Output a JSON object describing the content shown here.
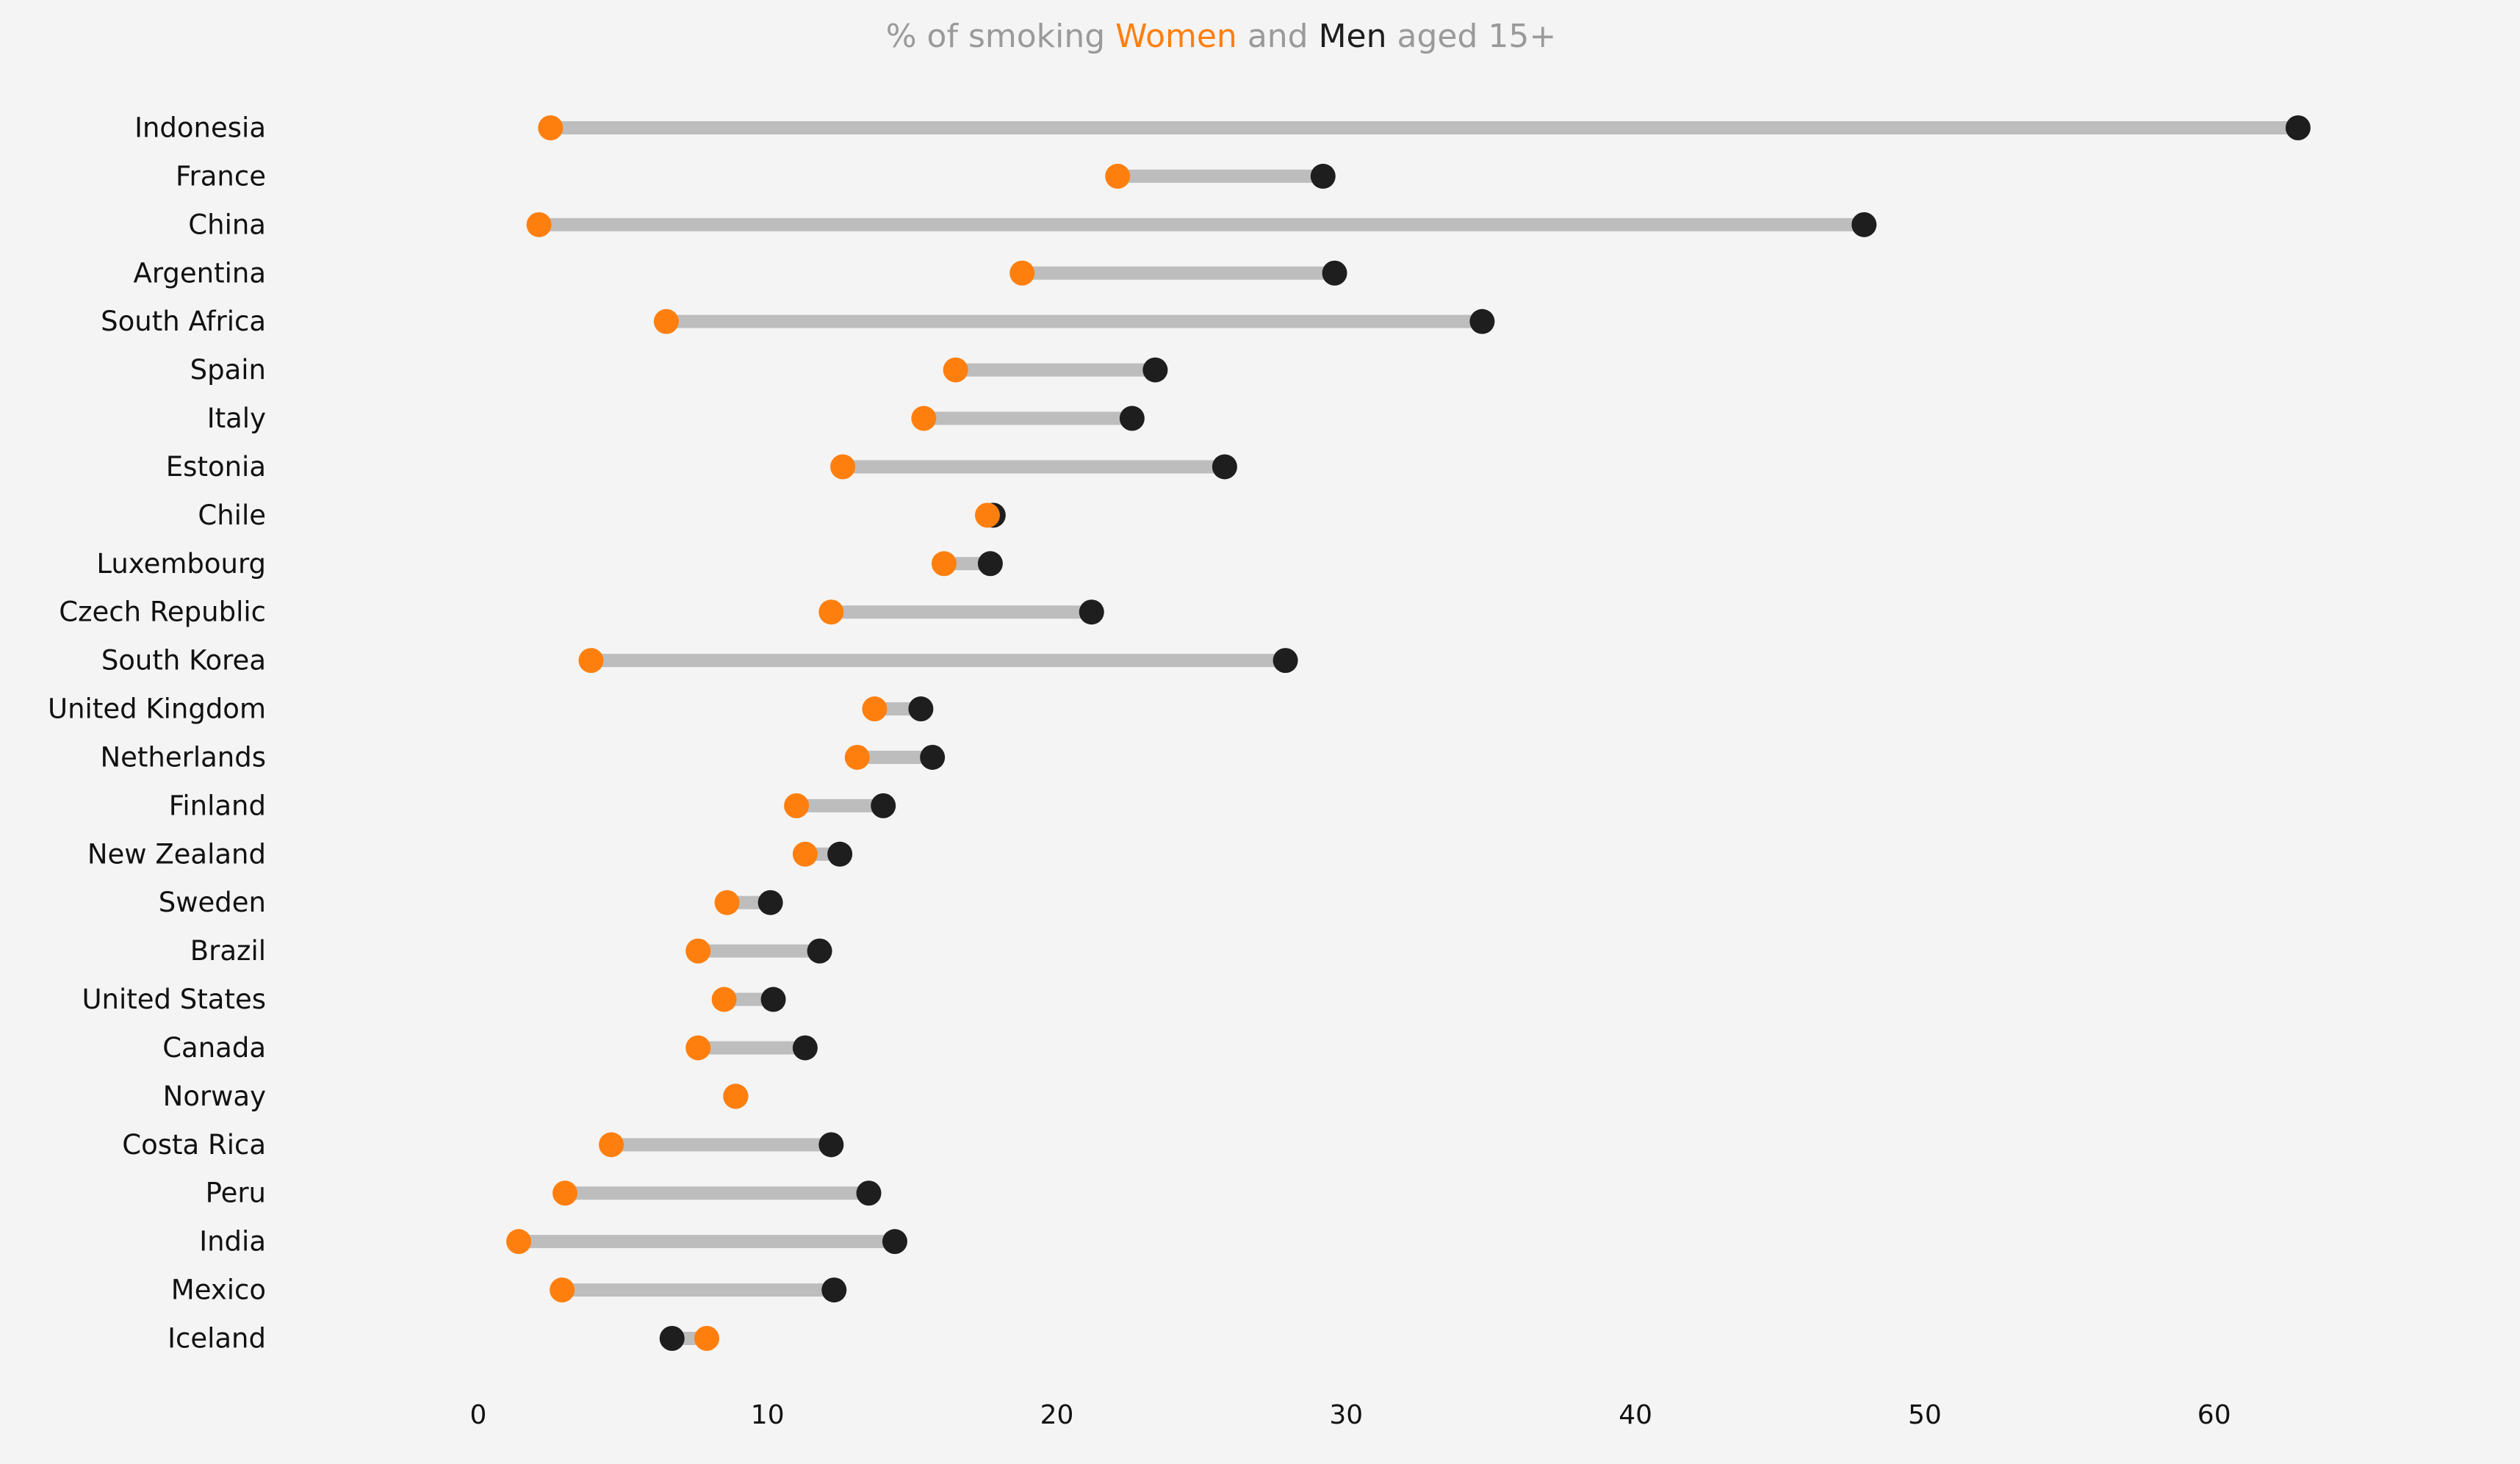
{
  "chart_data": {
    "type": "dumbbell",
    "title_parts": [
      {
        "text": "% of smoking ",
        "color": "#9a9a9a"
      },
      {
        "text": "Women",
        "color": "#ff7f0e"
      },
      {
        "text": " and ",
        "color": "#9a9a9a"
      },
      {
        "text": "Men",
        "color": "#1e1e1e"
      },
      {
        "text": " aged 15+",
        "color": "#9a9a9a"
      }
    ],
    "xlim": [
      -5,
      66
    ],
    "xticks": [
      0,
      10,
      20,
      30,
      40,
      50,
      60
    ],
    "grid": false,
    "colors": {
      "women": "#ff7f0e",
      "men": "#1e1e1e",
      "connector": "#bdbdbd",
      "background": "#f4f4f4",
      "text": "#111111"
    },
    "series": [
      {
        "name": "Women",
        "key": "women"
      },
      {
        "name": "Men",
        "key": "men"
      }
    ],
    "rows": [
      {
        "country": "Indonesia",
        "women": 2.5,
        "men": 62.9
      },
      {
        "country": "France",
        "women": 22.1,
        "men": 29.2
      },
      {
        "country": "China",
        "women": 2.1,
        "men": 47.9
      },
      {
        "country": "Argentina",
        "women": 18.8,
        "men": 29.6
      },
      {
        "country": "South Africa",
        "women": 6.5,
        "men": 34.7
      },
      {
        "country": "Spain",
        "women": 16.5,
        "men": 23.4
      },
      {
        "country": "Italy",
        "women": 15.4,
        "men": 22.6
      },
      {
        "country": "Estonia",
        "women": 12.6,
        "men": 25.8
      },
      {
        "country": "Chile",
        "women": 17.6,
        "men": 17.8
      },
      {
        "country": "Luxembourg",
        "women": 16.1,
        "men": 17.7
      },
      {
        "country": "Czech Republic",
        "women": 12.2,
        "men": 21.2
      },
      {
        "country": "South Korea",
        "women": 3.9,
        "men": 27.9
      },
      {
        "country": "United Kingdom",
        "women": 13.7,
        "men": 15.3
      },
      {
        "country": "Netherlands",
        "women": 13.1,
        "men": 15.7
      },
      {
        "country": "Finland",
        "women": 11.0,
        "men": 14.0
      },
      {
        "country": "New Zealand",
        "women": 11.3,
        "men": 12.5
      },
      {
        "country": "Sweden",
        "women": 8.6,
        "men": 10.1
      },
      {
        "country": "Brazil",
        "women": 7.6,
        "men": 11.8
      },
      {
        "country": "United States",
        "women": 8.5,
        "men": 10.2
      },
      {
        "country": "Canada",
        "women": 7.6,
        "men": 11.3
      },
      {
        "country": "Norway",
        "women": 8.9,
        "men": 8.9
      },
      {
        "country": "Costa Rica",
        "women": 4.6,
        "men": 12.2
      },
      {
        "country": "Peru",
        "women": 3.0,
        "men": 13.5
      },
      {
        "country": "India",
        "women": 1.4,
        "men": 14.4
      },
      {
        "country": "Mexico",
        "women": 2.9,
        "men": 12.3
      },
      {
        "country": "Iceland",
        "women": 7.9,
        "men": 6.7
      }
    ]
  }
}
